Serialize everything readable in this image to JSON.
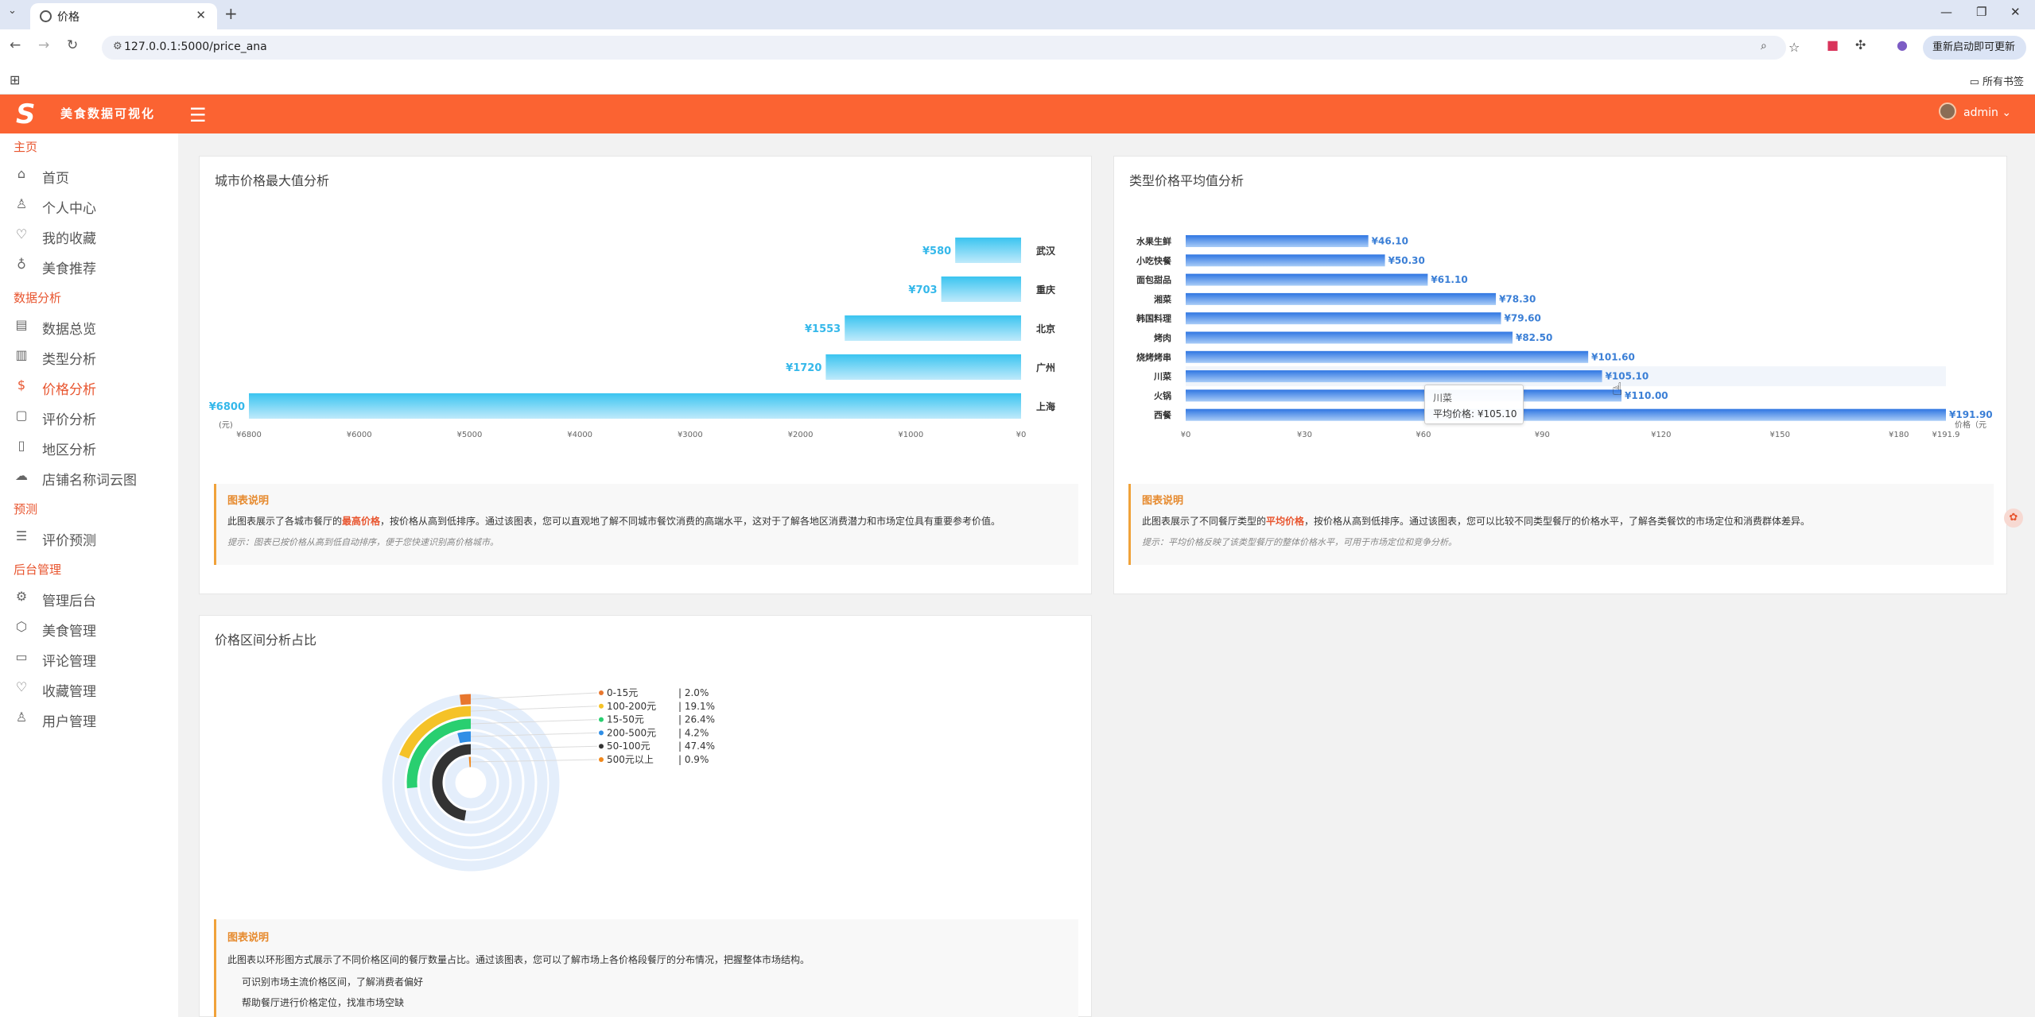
{
  "browser": {
    "tab_title": "价格",
    "url": "127.0.0.1:5000/price_ana",
    "update_label": "重新启动即可更新",
    "bookmarks_label": "所有书签"
  },
  "app": {
    "title": "美食数据可视化",
    "user": "admin"
  },
  "sidebar": {
    "sections": [
      {
        "title": "主页",
        "items": [
          {
            "label": "首页",
            "icon": "home-icon"
          },
          {
            "label": "个人中心",
            "icon": "user-icon"
          },
          {
            "label": "我的收藏",
            "icon": "heart-icon"
          },
          {
            "label": "美食推荐",
            "icon": "bulb-icon"
          }
        ]
      },
      {
        "title": "数据分析",
        "items": [
          {
            "label": "数据总览",
            "icon": "table-icon"
          },
          {
            "label": "类型分析",
            "icon": "chart-icon"
          },
          {
            "label": "价格分析",
            "icon": "dollar-icon",
            "active": true
          },
          {
            "label": "评价分析",
            "icon": "comment-icon"
          },
          {
            "label": "地区分析",
            "icon": "map-icon"
          },
          {
            "label": "店铺名称词云图",
            "icon": "cloud-icon"
          }
        ]
      },
      {
        "title": "预测",
        "items": [
          {
            "label": "评价预测",
            "icon": "list-icon"
          }
        ]
      },
      {
        "title": "后台管理",
        "items": [
          {
            "label": "管理后台",
            "icon": "gear-icon"
          },
          {
            "label": "美食管理",
            "icon": "box-icon"
          },
          {
            "label": "评论管理",
            "icon": "message-icon"
          },
          {
            "label": "收藏管理",
            "icon": "heart-pulse-icon"
          },
          {
            "label": "用户管理",
            "icon": "user-icon"
          }
        ]
      }
    ]
  },
  "cards": {
    "city": {
      "title": "城市价格最大值分析",
      "desc_head": "图表说明",
      "desc_pre": "此图表展示了各城市餐厅的",
      "desc_em": "最高价格",
      "desc_post": "，按价格从高到低排序。通过该图表，您可以直观地了解不同城市餐饮消费的高端水平，这对于了解各地区消费潜力和市场定位具有重要参考价值。",
      "tip": "提示：图表已按价格从高到低自动排序，便于您快速识别高价格城市。"
    },
    "type": {
      "title": "类型价格平均值分析",
      "desc_head": "图表说明",
      "desc_pre": "此图表展示了不同餐厅类型的",
      "desc_em": "平均价格",
      "desc_post": "，按价格从高到低排序。通过该图表，您可以比较不同类型餐厅的价格水平，了解各类餐饮的市场定位和消费群体差异。",
      "tip": "提示：平均价格反映了该类型餐厅的整体价格水平，可用于市场定位和竞争分析。",
      "tooltip_name": "川菜",
      "tooltip_value": "平均价格: ¥105.10"
    },
    "range": {
      "title": "价格区间分析占比",
      "desc_head": "图表说明",
      "desc_text": "此图表以环形图方式展示了不同价格区间的餐厅数量占比。通过该图表，您可以了解市场上各价格段餐厅的分布情况，把握整体市场结构。",
      "bullets": [
        "可识别市场主流价格区间，了解消费者偏好",
        "帮助餐厅进行价格定位，找准市场空缺"
      ]
    }
  },
  "chart_data": [
    {
      "type": "bar",
      "orientation": "horizontal",
      "title": "城市价格最大值分析",
      "categories": [
        "武汉",
        "重庆",
        "北京",
        "广州",
        "上海"
      ],
      "values": [
        580,
        703,
        1553,
        1720,
        6800
      ],
      "value_labels": [
        "¥580",
        "¥703",
        "¥1553",
        "¥1720",
        "¥6800"
      ],
      "xlim": [
        6800,
        0
      ],
      "x_inverted": true,
      "x_ticks": [
        "¥6800",
        "¥6000",
        "¥5000",
        "¥4000",
        "¥3000",
        "¥2000",
        "¥1000",
        "¥0"
      ],
      "xlabel": "(元)",
      "bar_color": "#38c1ee"
    },
    {
      "type": "bar",
      "orientation": "horizontal",
      "title": "类型价格平均值分析",
      "categories": [
        "水果生鲜",
        "小吃快餐",
        "面包甜品",
        "湘菜",
        "韩国料理",
        "烤肉",
        "烧烤烤串",
        "川菜",
        "火锅",
        "西餐"
      ],
      "values": [
        46.1,
        50.3,
        61.1,
        78.3,
        79.6,
        82.5,
        101.6,
        105.1,
        110.0,
        191.9
      ],
      "value_labels": [
        "¥46.10",
        "¥50.30",
        "¥61.10",
        "¥78.30",
        "¥79.60",
        "¥82.50",
        "¥101.60",
        "¥105.10",
        "¥110.00",
        "¥191.90"
      ],
      "xlim": [
        0,
        191.9
      ],
      "x_ticks": [
        "¥0",
        "¥30",
        "¥60",
        "¥90",
        "¥120",
        "¥150",
        "¥180",
        "¥191.9"
      ],
      "xlabel": "价格（元",
      "bar_color": "#3d82e6"
    },
    {
      "type": "pie",
      "variant": "radial-bar",
      "title": "价格区间分析占比",
      "series": [
        {
          "name": "0-15元",
          "label": "2.0%",
          "value": 2.0,
          "color": "#e8772e"
        },
        {
          "name": "100-200元",
          "label": "19.1%",
          "value": 19.1,
          "color": "#f5c227"
        },
        {
          "name": "15-50元",
          "label": "26.4%",
          "value": 26.4,
          "color": "#29cf70"
        },
        {
          "name": "200-500元",
          "label": "4.2%",
          "value": 4.2,
          "color": "#2f8ee6"
        },
        {
          "name": "50-100元",
          "label": "47.4%",
          "value": 47.4,
          "color": "#333333"
        },
        {
          "name": "500元以上",
          "label": "0.9%",
          "value": 0.9,
          "color": "#f0881c"
        }
      ]
    }
  ]
}
